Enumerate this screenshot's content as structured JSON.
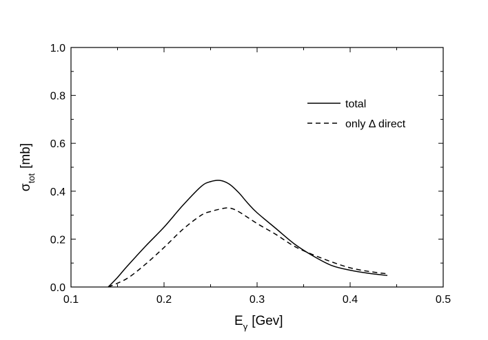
{
  "chart_data": {
    "type": "line",
    "xlim": [
      0.1,
      0.5
    ],
    "ylim": [
      0.0,
      1.0
    ],
    "x_ticks": [
      "0.1",
      "0.2",
      "0.3",
      "0.4",
      "0.5"
    ],
    "y_ticks": [
      "0.0",
      "0.2",
      "0.4",
      "0.6",
      "0.8",
      "1.0"
    ],
    "xlabel": {
      "symbol": "E",
      "subscript": "γ",
      "unit": "[Gev]"
    },
    "ylabel": {
      "symbol": "σ",
      "subscript": "tot",
      "unit": "[mb]"
    },
    "grid": false,
    "legend_position": "top-right",
    "series": [
      {
        "name": "total",
        "style": "solid",
        "color": "#000000",
        "x": [
          0.14,
          0.15,
          0.16,
          0.18,
          0.2,
          0.22,
          0.24,
          0.25,
          0.26,
          0.27,
          0.28,
          0.29,
          0.3,
          0.32,
          0.34,
          0.36,
          0.38,
          0.4,
          0.42,
          0.44
        ],
        "y": [
          0.0,
          0.04,
          0.085,
          0.17,
          0.25,
          0.34,
          0.42,
          0.44,
          0.445,
          0.43,
          0.395,
          0.35,
          0.31,
          0.245,
          0.18,
          0.13,
          0.09,
          0.07,
          0.057,
          0.048
        ]
      },
      {
        "name": "only Δ direct",
        "style": "dashed",
        "color": "#000000",
        "x": [
          0.14,
          0.16,
          0.18,
          0.2,
          0.22,
          0.24,
          0.25,
          0.26,
          0.27,
          0.28,
          0.3,
          0.32,
          0.34,
          0.36,
          0.38,
          0.4,
          0.42,
          0.44
        ],
        "y": [
          0.0,
          0.035,
          0.095,
          0.165,
          0.24,
          0.3,
          0.315,
          0.325,
          0.33,
          0.315,
          0.265,
          0.22,
          0.17,
          0.135,
          0.105,
          0.08,
          0.065,
          0.055
        ]
      }
    ]
  }
}
